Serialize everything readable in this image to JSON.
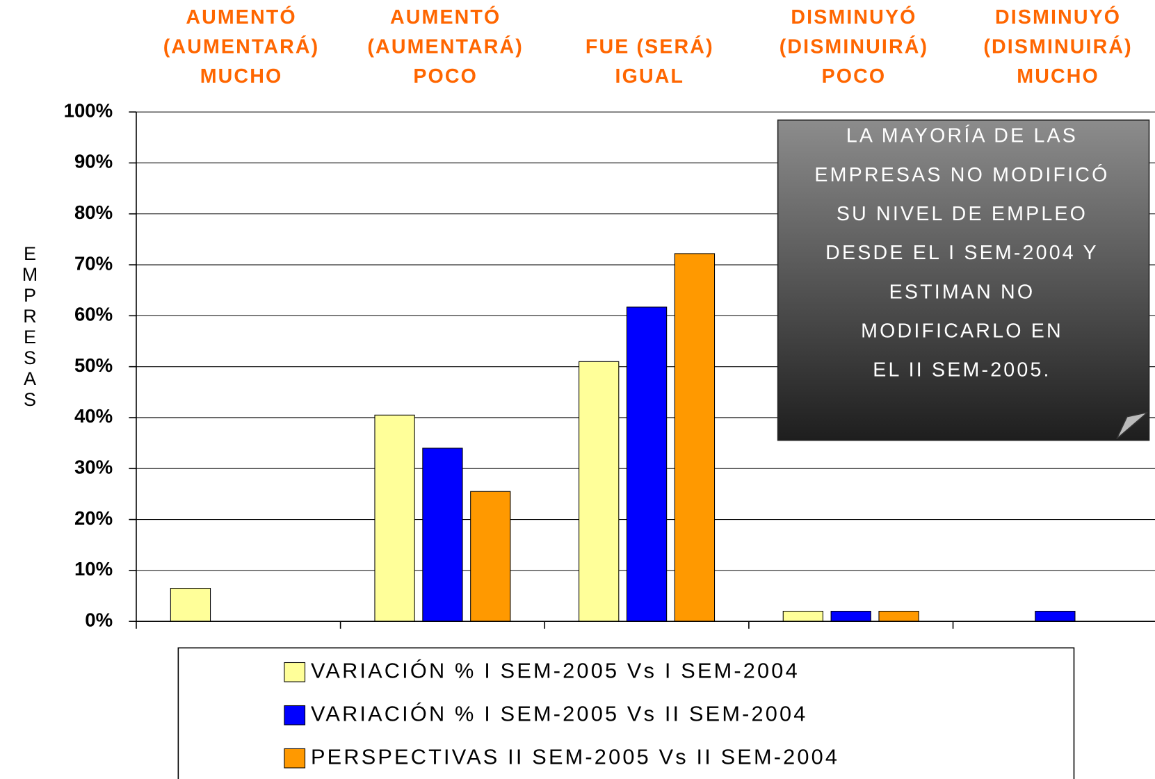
{
  "chart_data": {
    "type": "bar",
    "categories": [
      [
        "AUMENTÓ",
        "(AUMENTARÁ)",
        "MUCHO"
      ],
      [
        "AUMENTÓ",
        "(AUMENTARÁ)",
        "POCO"
      ],
      [
        "FUE (SERÁ)",
        "IGUAL"
      ],
      [
        "DISMINUYÓ",
        "(DISMINUIRÁ)",
        "POCO"
      ],
      [
        "DISMINUYÓ",
        "(DISMINUIRÁ)",
        "MUCHO"
      ]
    ],
    "series": [
      {
        "name": "VARIACIÓN % I SEM-2005 Vs I SEM-2004",
        "color": "#ffff99",
        "values": [
          6.5,
          40.5,
          51,
          2,
          null
        ]
      },
      {
        "name": "VARIACIÓN % I SEM-2005 Vs II SEM-2004",
        "color": "#0000ff",
        "values": [
          null,
          34,
          61.7,
          2,
          2
        ]
      },
      {
        "name": "PERSPECTIVAS II SEM-2005 Vs II SEM-2004",
        "color": "#ff9900",
        "values": [
          null,
          25.5,
          72.2,
          2,
          null
        ]
      }
    ],
    "ylabel": "EMPRESAS",
    "ylim": [
      0,
      100
    ],
    "yticks": [
      {
        "value": 0,
        "label": "0%"
      },
      {
        "value": 10,
        "label": "10%"
      },
      {
        "value": 20,
        "label": "20%"
      },
      {
        "value": 30,
        "label": "30%"
      },
      {
        "value": 40,
        "label": "40%"
      },
      {
        "value": 50,
        "label": "50%"
      },
      {
        "value": 60,
        "label": "60%"
      },
      {
        "value": 70,
        "label": "70%"
      },
      {
        "value": 80,
        "label": "80%"
      },
      {
        "value": 90,
        "label": "90%"
      },
      {
        "value": 100,
        "label": "100%"
      }
    ],
    "grid": true,
    "annotation": [
      "LA MAYORÍA DE LAS",
      "EMPRESAS NO MODIFICÓ",
      "SU NIVEL DE EMPLEO",
      "DESDE EL I SEM-2004 Y",
      "ESTIMAN NO",
      "MODIFICARLO EN",
      "EL II SEM-2005."
    ],
    "legend": "bottom"
  }
}
